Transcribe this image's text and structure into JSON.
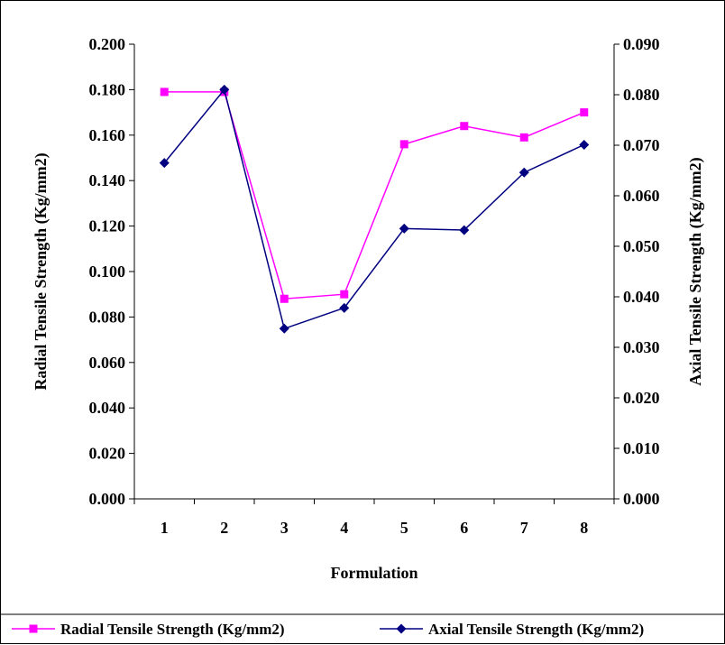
{
  "chart_data": {
    "type": "line",
    "categories": [
      "1",
      "2",
      "3",
      "4",
      "5",
      "6",
      "7",
      "8"
    ],
    "xlabel": "Formulation",
    "y_left": {
      "label": "Radial Tensile Strength (Kg/mm2)",
      "ylim": [
        0,
        0.2
      ],
      "ticks": [
        "0.000",
        "0.020",
        "0.040",
        "0.060",
        "0.080",
        "0.100",
        "0.120",
        "0.140",
        "0.160",
        "0.180",
        "0.200"
      ]
    },
    "y_right": {
      "label": "Axial Tensile Strength (Kg/mm2)",
      "ylim": [
        0,
        0.09
      ],
      "ticks": [
        "0.000",
        "0.010",
        "0.020",
        "0.030",
        "0.040",
        "0.050",
        "0.060",
        "0.070",
        "0.080",
        "0.090"
      ]
    },
    "series": [
      {
        "name": "Radial Tensile Strength (Kg/mm2)",
        "axis": "left",
        "color": "#ff00ff",
        "marker": "square",
        "values": [
          0.179,
          0.179,
          0.088,
          0.09,
          0.156,
          0.164,
          0.159,
          0.17
        ]
      },
      {
        "name": "Axial Tensile Strength (Kg/mm2)",
        "axis": "right",
        "color": "#000080",
        "marker": "diamond",
        "values": [
          0.0665,
          0.081,
          0.0337,
          0.0378,
          0.0535,
          0.0532,
          0.0646,
          0.0701
        ]
      }
    ],
    "legend_position": "bottom",
    "grid": false
  }
}
